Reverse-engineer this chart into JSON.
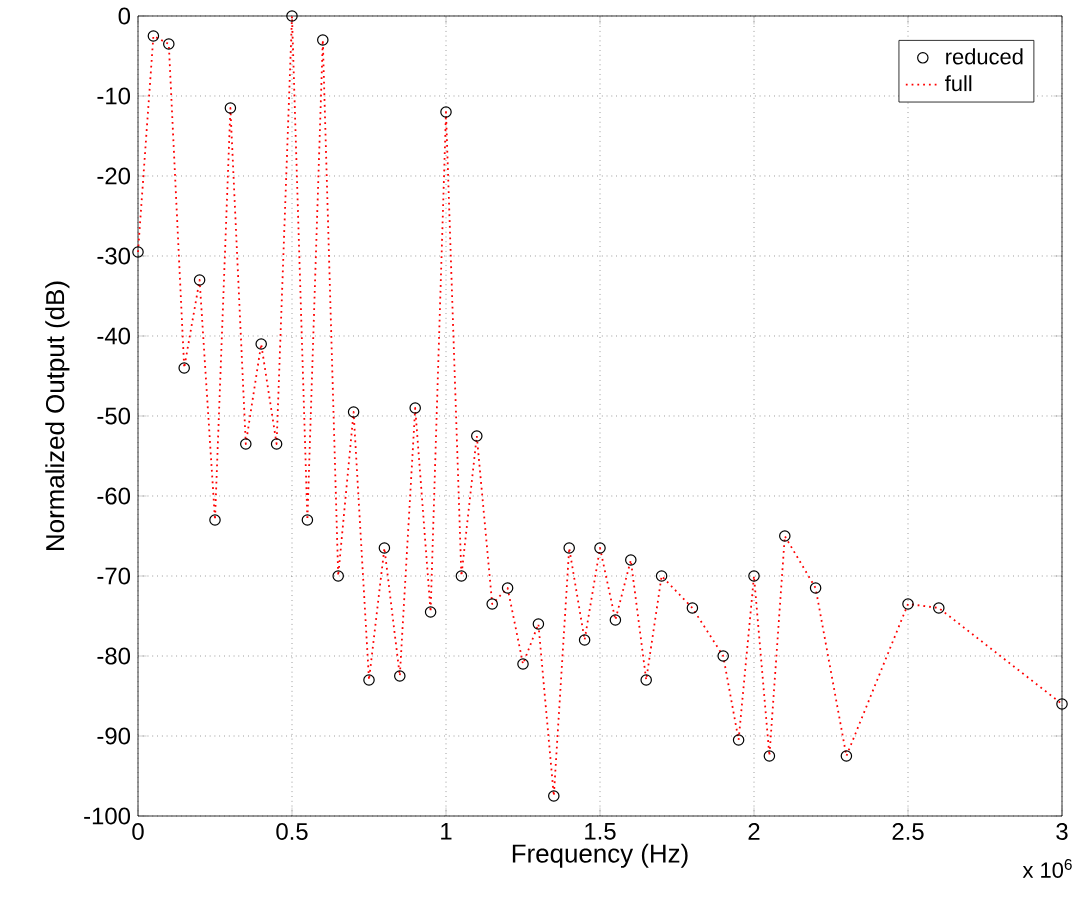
{
  "chart_data": {
    "type": "line",
    "xlabel": "Frequency (Hz)",
    "ylabel": "Normalized Output (dB)",
    "annotations": [
      "x 10$^{6}$"
    ],
    "x": [
      0,
      0.05,
      0.1,
      0.15,
      0.2,
      0.25,
      0.3,
      0.35,
      0.4,
      0.45,
      0.5,
      0.55,
      0.6,
      0.65,
      0.7,
      0.75,
      0.8,
      0.85,
      0.9,
      0.95,
      1.0,
      1.05,
      1.1,
      1.15,
      1.2,
      1.25,
      1.3,
      1.35,
      1.4,
      1.45,
      1.5,
      1.55,
      1.6,
      1.65,
      1.7,
      1.8,
      1.9,
      1.95,
      2.0,
      2.05,
      2.1,
      2.2,
      2.3,
      2.5,
      2.6,
      3.0
    ],
    "series": [
      {
        "name": "reduced",
        "type": "scatter",
        "color": "#000000",
        "marker": "circle",
        "values": [
          -29.5,
          -2.5,
          -3.5,
          -44,
          -33,
          -63,
          -11.5,
          -53.5,
          -41,
          -53.5,
          0,
          -63,
          -3,
          -70,
          -49.5,
          -83,
          -66.5,
          -82.5,
          -49,
          -74.5,
          -12,
          -70,
          -52.5,
          -73.5,
          -71.5,
          -81,
          -76,
          -97.5,
          -66.5,
          -78,
          -66.5,
          -75.5,
          -68,
          -83,
          -70,
          -74,
          -80,
          -90.5,
          -70,
          -92.5,
          -65,
          -71.5,
          -92.5,
          -73.5,
          -74,
          -86
        ]
      },
      {
        "name": "full",
        "color": "#ff0000",
        "line_style": "dotted",
        "values": [
          -29.5,
          -2.5,
          -3.5,
          -44,
          -33,
          -63,
          -11.5,
          -53.5,
          -41,
          -53.5,
          0,
          -63,
          -3,
          -70,
          -49.5,
          -83,
          -66.5,
          -82.5,
          -49,
          -74.5,
          -12,
          -70,
          -52.5,
          -73.5,
          -71.5,
          -81,
          -76,
          -97.5,
          -66.5,
          -78,
          -66.5,
          -75.5,
          -68,
          -83,
          -70,
          -74,
          -80,
          -90.5,
          -70,
          -92.5,
          -65,
          -71.5,
          -92.5,
          -73.5,
          -74,
          -86
        ]
      }
    ],
    "xlim": [
      0,
      3
    ],
    "ylim": [
      -100,
      0
    ],
    "xticks": [
      0,
      0.5,
      1,
      1.5,
      2,
      2.5,
      3
    ],
    "yticks": [
      -100,
      -90,
      -80,
      -70,
      -60,
      -50,
      -40,
      -30,
      -20,
      -10,
      0
    ],
    "grid": true,
    "legend": "top right"
  }
}
